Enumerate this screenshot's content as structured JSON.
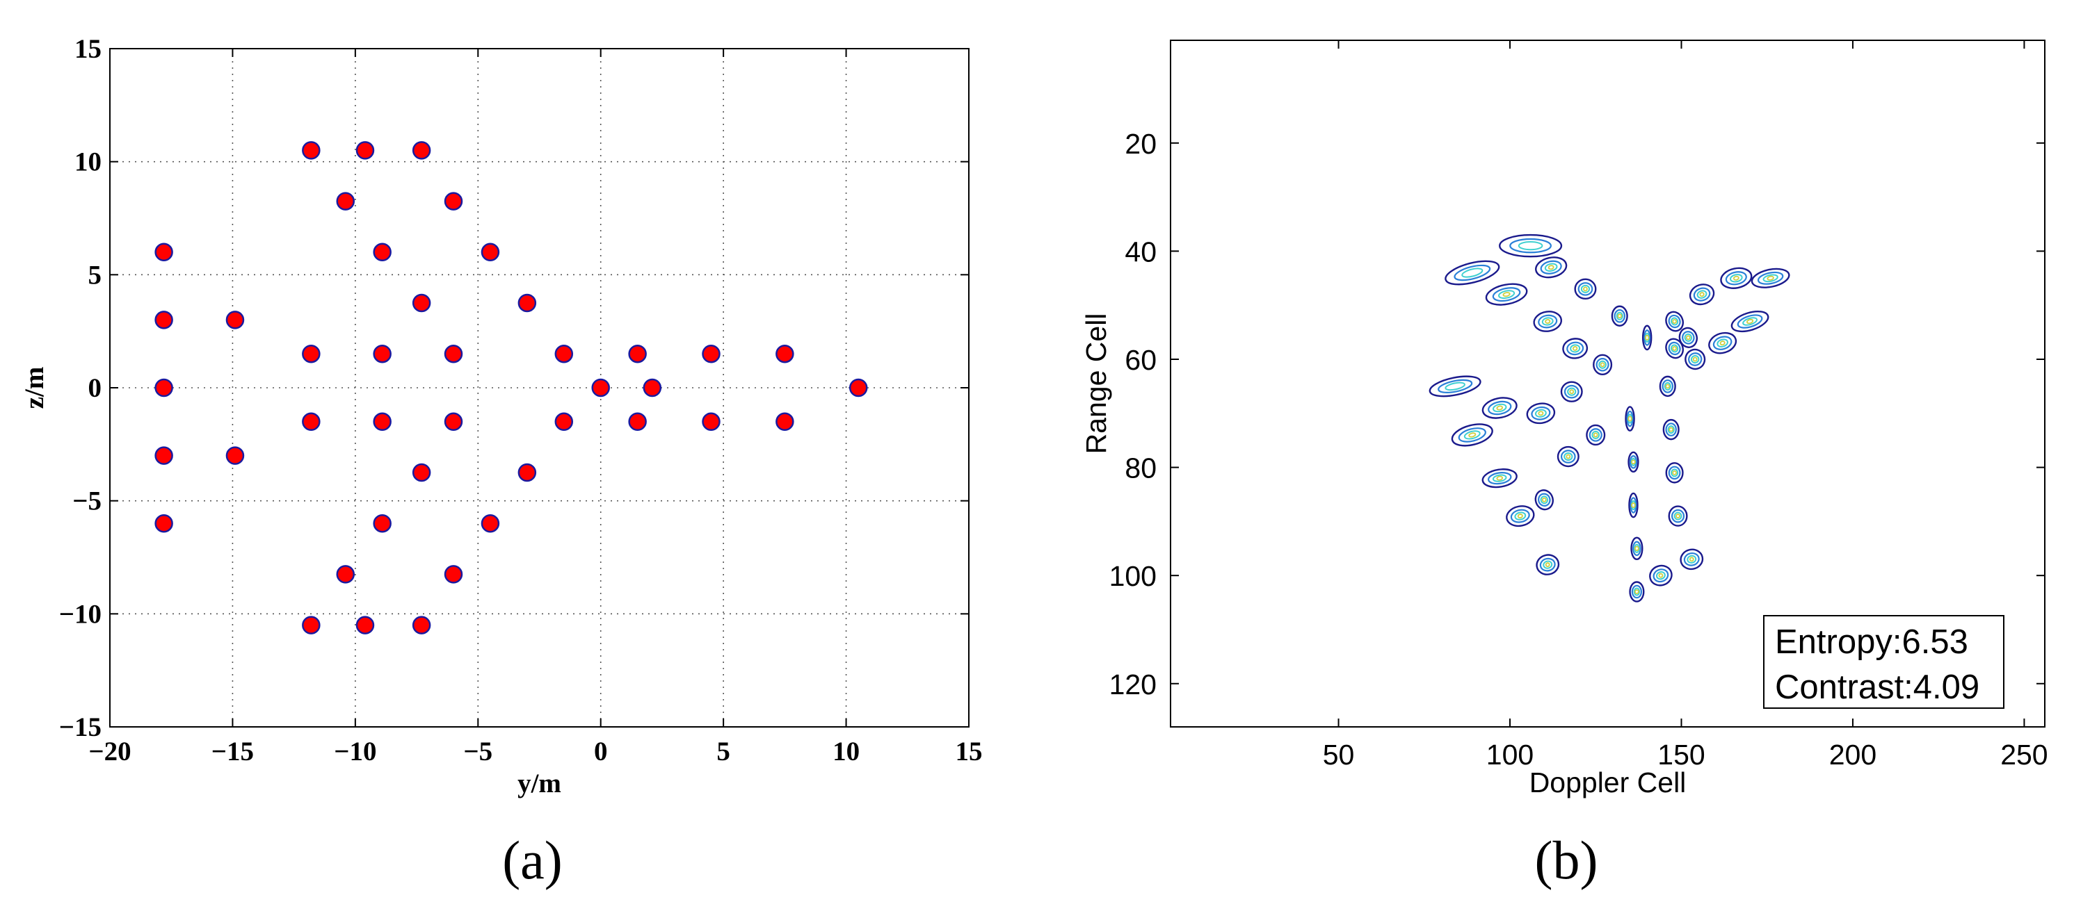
{
  "chart_data": [
    {
      "type": "scatter",
      "panel_label": "(a)",
      "xlabel": "y/m",
      "ylabel": "z/m",
      "xlim": [
        -20,
        15
      ],
      "ylim": [
        -15,
        15
      ],
      "x_ticks": [
        "−20",
        "−15",
        "−10",
        "−5",
        "0",
        "5",
        "10",
        "15"
      ],
      "y_ticks": [
        "−15",
        "−10",
        "−5",
        "0",
        "5",
        "10",
        "15"
      ],
      "grid": true,
      "marker_color": "#ff0000",
      "marker_edge_color": "#1a1aa0",
      "points": [
        [
          -11.8,
          10.5
        ],
        [
          -9.6,
          10.5
        ],
        [
          -7.3,
          10.5
        ],
        [
          -10.4,
          8.25
        ],
        [
          -6.0,
          8.25
        ],
        [
          -17.8,
          6.0
        ],
        [
          -8.9,
          6.0
        ],
        [
          -4.5,
          6.0
        ],
        [
          -7.3,
          3.75
        ],
        [
          -3.0,
          3.75
        ],
        [
          -17.8,
          3.0
        ],
        [
          -14.9,
          3.0
        ],
        [
          -11.8,
          1.5
        ],
        [
          -8.9,
          1.5
        ],
        [
          -6.0,
          1.5
        ],
        [
          -1.5,
          1.5
        ],
        [
          1.5,
          1.5
        ],
        [
          4.5,
          1.5
        ],
        [
          7.5,
          1.5
        ],
        [
          -17.8,
          0.0
        ],
        [
          0.0,
          0.0
        ],
        [
          2.1,
          0.0
        ],
        [
          10.5,
          0.0
        ],
        [
          -11.8,
          -1.5
        ],
        [
          -8.9,
          -1.5
        ],
        [
          -6.0,
          -1.5
        ],
        [
          -1.5,
          -1.5
        ],
        [
          1.5,
          -1.5
        ],
        [
          4.5,
          -1.5
        ],
        [
          7.5,
          -1.5
        ],
        [
          -17.8,
          -3.0
        ],
        [
          -14.9,
          -3.0
        ],
        [
          -7.3,
          -3.75
        ],
        [
          -3.0,
          -3.75
        ],
        [
          -17.8,
          -6.0
        ],
        [
          -8.9,
          -6.0
        ],
        [
          -4.5,
          -6.0
        ],
        [
          -10.4,
          -8.25
        ],
        [
          -6.0,
          -8.25
        ],
        [
          -11.8,
          -10.5
        ],
        [
          -9.6,
          -10.5
        ],
        [
          -7.3,
          -10.5
        ]
      ]
    },
    {
      "type": "contour",
      "panel_label": "(b)",
      "xlabel": "Doppler Cell",
      "ylabel": "Range Cell",
      "xlim": [
        1,
        256
      ],
      "ylim": [
        128,
        1
      ],
      "x_ticks": [
        "50",
        "100",
        "150",
        "200",
        "250"
      ],
      "y_ticks": [
        "20",
        "40",
        "60",
        "80",
        "100",
        "120"
      ],
      "grid": false,
      "legend_box": {
        "line1": "Entropy:6.53",
        "line2": "Contrast:4.09"
      },
      "contour_colors": [
        "#1a1a8c",
        "#2a80d8",
        "#40d0d0",
        "#d0d040"
      ],
      "blobs": [
        [
          106,
          39,
          9,
          2.0,
          0.0
        ],
        [
          89,
          44,
          8,
          1.8,
          -0.25
        ],
        [
          99,
          48,
          6,
          1.8,
          -0.2
        ],
        [
          112,
          43,
          4.5,
          1.8,
          -0.2
        ],
        [
          122,
          47,
          3,
          1.8,
          0
        ],
        [
          132,
          52,
          2.2,
          1.8,
          0
        ],
        [
          140,
          56,
          0.9,
          2.2,
          0
        ],
        [
          111,
          53,
          4,
          1.8,
          -0.15
        ],
        [
          119,
          58,
          3.5,
          1.8,
          -0.1
        ],
        [
          127,
          61,
          2.6,
          1.8,
          0
        ],
        [
          84,
          65,
          7.5,
          1.6,
          -0.2
        ],
        [
          97,
          69,
          5,
          1.8,
          -0.2
        ],
        [
          109,
          70,
          4,
          1.8,
          -0.15
        ],
        [
          118,
          66,
          3,
          1.8,
          0
        ],
        [
          89,
          74,
          6,
          1.8,
          -0.25
        ],
        [
          125,
          74,
          2.6,
          1.8,
          0
        ],
        [
          135,
          71,
          0.9,
          2.2,
          0
        ],
        [
          117,
          78,
          3,
          1.8,
          0
        ],
        [
          136,
          79,
          1.4,
          1.8,
          0
        ],
        [
          97,
          82,
          5,
          1.6,
          -0.15
        ],
        [
          136,
          87,
          0.9,
          2.2,
          0
        ],
        [
          110,
          86,
          2.5,
          1.8,
          -0.3
        ],
        [
          103,
          89,
          4,
          1.8,
          -0.2
        ],
        [
          137,
          95,
          1.6,
          2.0,
          0
        ],
        [
          111,
          98,
          3.2,
          1.8,
          -0.2
        ],
        [
          137,
          103,
          2.0,
          1.8,
          0
        ],
        [
          144,
          100,
          3.2,
          1.8,
          -0.3
        ],
        [
          153,
          97,
          3.2,
          1.8,
          -0.2
        ],
        [
          149,
          89,
          2.6,
          1.8,
          0
        ],
        [
          148,
          81,
          2.4,
          1.8,
          0
        ],
        [
          147,
          73,
          2.2,
          1.8,
          0
        ],
        [
          146,
          65,
          2.2,
          1.8,
          0
        ],
        [
          148,
          58,
          2.4,
          1.8,
          -0.4
        ],
        [
          154,
          60,
          2.8,
          1.8,
          -0.4
        ],
        [
          152,
          56,
          2.5,
          1.8,
          -0.3
        ],
        [
          148,
          53,
          2.4,
          1.8,
          -0.4
        ],
        [
          156,
          48,
          3.5,
          1.8,
          -0.3
        ],
        [
          166,
          45,
          4.5,
          1.8,
          -0.2
        ],
        [
          176,
          45,
          5.5,
          1.6,
          -0.2
        ],
        [
          170,
          53,
          5.5,
          1.6,
          -0.3
        ],
        [
          162,
          57,
          4,
          1.8,
          -0.3
        ]
      ]
    }
  ]
}
